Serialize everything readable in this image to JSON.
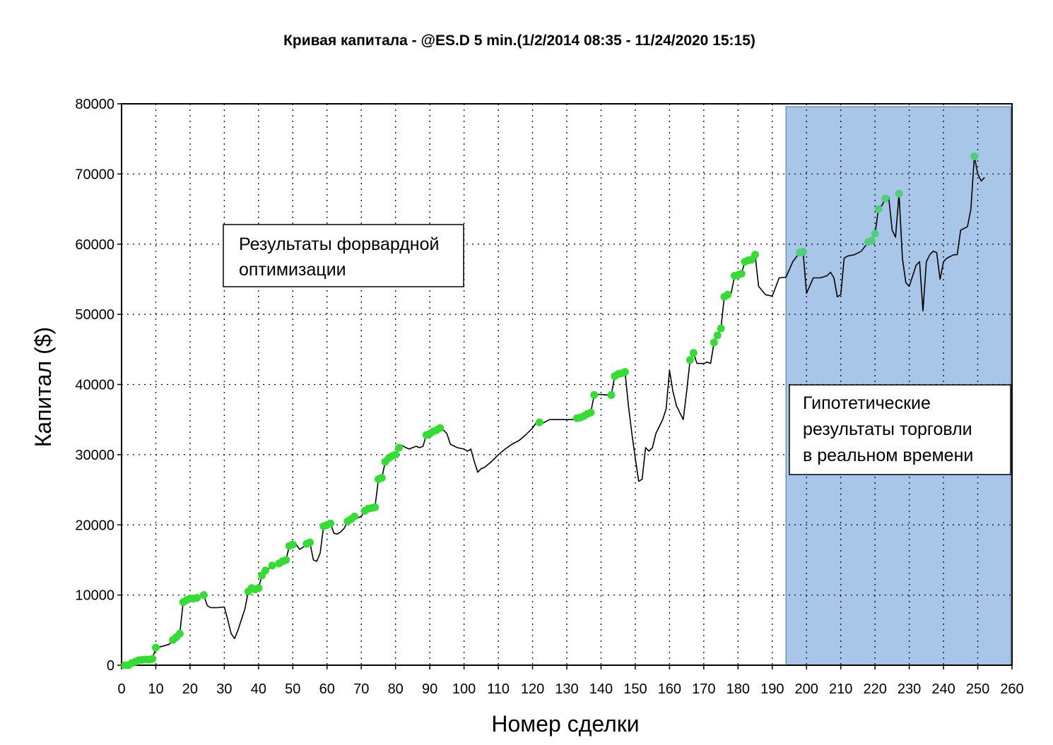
{
  "chart_data": {
    "type": "line",
    "title": "Кривая капитала - @ES.D 5 min.(1/2/2014 08:35 - 11/24/2020 15:15)",
    "xlabel": "Номер сделки",
    "ylabel": "Капитал ($)",
    "xlim": [
      0,
      260
    ],
    "ylim": [
      0,
      80000
    ],
    "x_ticks": [
      0,
      10,
      20,
      30,
      40,
      50,
      60,
      70,
      80,
      90,
      100,
      110,
      120,
      130,
      140,
      150,
      160,
      170,
      180,
      190,
      200,
      210,
      220,
      230,
      240,
      250,
      260
    ],
    "y_ticks": [
      0,
      10000,
      20000,
      30000,
      40000,
      50000,
      60000,
      70000,
      80000
    ],
    "grid": true,
    "series": [
      {
        "name": "",
        "color": "#000000",
        "points": [
          [
            0,
            0
          ],
          [
            2,
            0
          ],
          [
            3,
            300
          ],
          [
            4,
            500
          ],
          [
            5,
            700
          ],
          [
            6,
            750
          ],
          [
            7,
            800
          ],
          [
            8,
            800
          ],
          [
            9,
            900
          ],
          [
            10,
            2500
          ],
          [
            12,
            2700
          ],
          [
            14,
            3000
          ],
          [
            15,
            3600
          ],
          [
            16,
            4000
          ],
          [
            17,
            4500
          ],
          [
            18,
            9000
          ],
          [
            19,
            9300
          ],
          [
            20,
            9500
          ],
          [
            21,
            9500
          ],
          [
            22,
            9600
          ],
          [
            24,
            10000
          ],
          [
            25,
            8500
          ],
          [
            26,
            8200
          ],
          [
            28,
            8200
          ],
          [
            30,
            8300
          ],
          [
            31,
            6500
          ],
          [
            32,
            4500
          ],
          [
            33,
            3800
          ],
          [
            34,
            5000
          ],
          [
            35,
            6500
          ],
          [
            36,
            8000
          ],
          [
            37,
            10500
          ],
          [
            38,
            11000
          ],
          [
            39,
            10800
          ],
          [
            40,
            11000
          ],
          [
            41,
            12800
          ],
          [
            42,
            13500
          ],
          [
            43,
            13800
          ],
          [
            44,
            14200
          ],
          [
            45,
            14200
          ],
          [
            46,
            14500
          ],
          [
            47,
            14800
          ],
          [
            48,
            15000
          ],
          [
            49,
            17000
          ],
          [
            50,
            17200
          ],
          [
            51,
            17200
          ],
          [
            52,
            16500
          ],
          [
            53,
            16800
          ],
          [
            54,
            17300
          ],
          [
            55,
            17500
          ],
          [
            56,
            15000
          ],
          [
            57,
            14800
          ],
          [
            58,
            16000
          ],
          [
            59,
            19800
          ],
          [
            60,
            20000
          ],
          [
            61,
            20200
          ],
          [
            62,
            18800
          ],
          [
            63,
            18700
          ],
          [
            64,
            19000
          ],
          [
            65,
            19500
          ],
          [
            66,
            20500
          ],
          [
            67,
            20800
          ],
          [
            68,
            21200
          ],
          [
            69,
            21000
          ],
          [
            70,
            21200
          ],
          [
            71,
            22000
          ],
          [
            72,
            22300
          ],
          [
            73,
            22400
          ],
          [
            74,
            22500
          ],
          [
            75,
            26500
          ],
          [
            76,
            26700
          ],
          [
            77,
            29000
          ],
          [
            78,
            29500
          ],
          [
            79,
            29800
          ],
          [
            80,
            30000
          ],
          [
            81,
            31000
          ],
          [
            82,
            31300
          ],
          [
            83,
            31000
          ],
          [
            84,
            30800
          ],
          [
            85,
            31000
          ],
          [
            86,
            31200
          ],
          [
            87,
            31000
          ],
          [
            88,
            31200
          ],
          [
            89,
            32800
          ],
          [
            90,
            33000
          ],
          [
            91,
            33300
          ],
          [
            92,
            33500
          ],
          [
            93,
            33800
          ],
          [
            94,
            33500
          ],
          [
            95,
            33000
          ],
          [
            96,
            31500
          ],
          [
            98,
            31000
          ],
          [
            100,
            30800
          ],
          [
            101,
            30500
          ],
          [
            102,
            30800
          ],
          [
            103,
            29000
          ],
          [
            104,
            27500
          ],
          [
            105,
            28000
          ],
          [
            106,
            28200
          ],
          [
            108,
            29000
          ],
          [
            110,
            30000
          ],
          [
            112,
            30800
          ],
          [
            114,
            31500
          ],
          [
            116,
            32000
          ],
          [
            118,
            32800
          ],
          [
            120,
            33800
          ],
          [
            121,
            34500
          ],
          [
            122,
            34600
          ],
          [
            123,
            34500
          ],
          [
            125,
            35000
          ],
          [
            130,
            35000
          ],
          [
            132,
            35000
          ],
          [
            133,
            35200
          ],
          [
            134,
            35300
          ],
          [
            135,
            35500
          ],
          [
            136,
            35800
          ],
          [
            137,
            36000
          ],
          [
            138,
            38500
          ],
          [
            139,
            38600
          ],
          [
            142,
            38500
          ],
          [
            143,
            38500
          ],
          [
            144,
            41200
          ],
          [
            145,
            41500
          ],
          [
            146,
            41600
          ],
          [
            147,
            41800
          ],
          [
            148,
            37000
          ],
          [
            149,
            33000
          ],
          [
            150,
            29500
          ],
          [
            151,
            26200
          ],
          [
            152,
            26500
          ],
          [
            153,
            31000
          ],
          [
            154,
            30500
          ],
          [
            155,
            31000
          ],
          [
            156,
            33000
          ],
          [
            157,
            34000
          ],
          [
            158,
            35000
          ],
          [
            159,
            36500
          ],
          [
            160,
            42000
          ],
          [
            161,
            39000
          ],
          [
            162,
            37000
          ],
          [
            163,
            36000
          ],
          [
            164,
            35000
          ],
          [
            165,
            39000
          ],
          [
            166,
            43500
          ],
          [
            167,
            44500
          ],
          [
            168,
            43000
          ],
          [
            169,
            43000
          ],
          [
            170,
            43000
          ],
          [
            171,
            43200
          ],
          [
            172,
            43000
          ],
          [
            173,
            46000
          ],
          [
            174,
            47000
          ],
          [
            175,
            48000
          ],
          [
            176,
            52500
          ],
          [
            177,
            52800
          ],
          [
            178,
            53000
          ],
          [
            179,
            55500
          ],
          [
            180,
            55600
          ],
          [
            181,
            55800
          ],
          [
            182,
            57500
          ],
          [
            183,
            57700
          ],
          [
            184,
            57800
          ],
          [
            185,
            58500
          ],
          [
            186,
            54000
          ],
          [
            188,
            52800
          ],
          [
            190,
            52600
          ],
          [
            192,
            55200
          ],
          [
            194,
            55300
          ],
          [
            196,
            57500
          ],
          [
            198,
            58800
          ],
          [
            199,
            58900
          ],
          [
            200,
            53000
          ],
          [
            202,
            55200
          ],
          [
            204,
            55200
          ],
          [
            206,
            55500
          ],
          [
            207,
            56000
          ],
          [
            208,
            55200
          ],
          [
            209,
            52500
          ],
          [
            210,
            52800
          ],
          [
            211,
            58000
          ],
          [
            212,
            58300
          ],
          [
            214,
            58500
          ],
          [
            216,
            59000
          ],
          [
            218,
            60300
          ],
          [
            219,
            60500
          ],
          [
            220,
            61500
          ],
          [
            221,
            65000
          ],
          [
            222,
            65500
          ],
          [
            223,
            66500
          ],
          [
            224,
            66700
          ],
          [
            225,
            62000
          ],
          [
            226,
            61000
          ],
          [
            227,
            67200
          ],
          [
            228,
            58000
          ],
          [
            229,
            54500
          ],
          [
            230,
            54000
          ],
          [
            231,
            55500
          ],
          [
            232,
            57000
          ],
          [
            233,
            57500
          ],
          [
            234,
            50500
          ],
          [
            235,
            57500
          ],
          [
            236,
            58500
          ],
          [
            237,
            59000
          ],
          [
            238,
            58800
          ],
          [
            239,
            55000
          ],
          [
            240,
            57500
          ],
          [
            241,
            58000
          ],
          [
            243,
            58500
          ],
          [
            244,
            58500
          ],
          [
            245,
            62000
          ],
          [
            247,
            62500
          ],
          [
            248,
            65000
          ],
          [
            249,
            72500
          ],
          [
            250,
            70000
          ],
          [
            251,
            69000
          ],
          [
            252,
            69500
          ]
        ]
      }
    ],
    "markers": {
      "color_optimization": "#33dd33",
      "color_live": "#4fcf7a",
      "points": [
        [
          1,
          0
        ],
        [
          2,
          0
        ],
        [
          3,
          300
        ],
        [
          4,
          500
        ],
        [
          5,
          700
        ],
        [
          6,
          750
        ],
        [
          7,
          800
        ],
        [
          8,
          800
        ],
        [
          9,
          900
        ],
        [
          10,
          2500
        ],
        [
          15,
          3600
        ],
        [
          16,
          4000
        ],
        [
          17,
          4500
        ],
        [
          18,
          9000
        ],
        [
          19,
          9300
        ],
        [
          20,
          9500
        ],
        [
          21,
          9500
        ],
        [
          22,
          9600
        ],
        [
          24,
          10000
        ],
        [
          37,
          10500
        ],
        [
          38,
          11000
        ],
        [
          39,
          10800
        ],
        [
          40,
          11000
        ],
        [
          41,
          12800
        ],
        [
          42,
          13500
        ],
        [
          44,
          14200
        ],
        [
          46,
          14500
        ],
        [
          47,
          14800
        ],
        [
          48,
          15000
        ],
        [
          49,
          17000
        ],
        [
          50,
          17200
        ],
        [
          54,
          17300
        ],
        [
          55,
          17500
        ],
        [
          59,
          19800
        ],
        [
          60,
          20000
        ],
        [
          61,
          20200
        ],
        [
          66,
          20500
        ],
        [
          67,
          20800
        ],
        [
          68,
          21200
        ],
        [
          71,
          22000
        ],
        [
          72,
          22300
        ],
        [
          73,
          22400
        ],
        [
          74,
          22500
        ],
        [
          75,
          26500
        ],
        [
          76,
          26700
        ],
        [
          77,
          29000
        ],
        [
          78,
          29500
        ],
        [
          79,
          29800
        ],
        [
          80,
          30000
        ],
        [
          81,
          31000
        ],
        [
          89,
          32800
        ],
        [
          90,
          33000
        ],
        [
          91,
          33300
        ],
        [
          92,
          33500
        ],
        [
          93,
          33800
        ],
        [
          122,
          34600
        ],
        [
          133,
          35200
        ],
        [
          134,
          35300
        ],
        [
          135,
          35500
        ],
        [
          136,
          35800
        ],
        [
          137,
          36000
        ],
        [
          138,
          38500
        ],
        [
          143,
          38500
        ],
        [
          144,
          41200
        ],
        [
          145,
          41500
        ],
        [
          146,
          41600
        ],
        [
          147,
          41800
        ],
        [
          166,
          43500
        ],
        [
          167,
          44500
        ],
        [
          173,
          46000
        ],
        [
          174,
          47000
        ],
        [
          175,
          48000
        ],
        [
          176,
          52500
        ],
        [
          177,
          52800
        ],
        [
          179,
          55500
        ],
        [
          180,
          55600
        ],
        [
          181,
          55800
        ],
        [
          182,
          57500
        ],
        [
          183,
          57700
        ],
        [
          184,
          57800
        ],
        [
          185,
          58500
        ]
      ],
      "live_points": [
        [
          198,
          58800
        ],
        [
          199,
          58900
        ],
        [
          218,
          60300
        ],
        [
          219,
          60500
        ],
        [
          220,
          61500
        ],
        [
          221,
          65000
        ],
        [
          223,
          66500
        ],
        [
          227,
          67200
        ],
        [
          249,
          72500
        ]
      ]
    },
    "shaded_region": {
      "x_start": 194,
      "x_end": 260,
      "color": "#a7c6e8"
    },
    "annotations": [
      {
        "lines": [
          "Результаты форвардной",
          "оптимизации"
        ]
      },
      {
        "lines": [
          "Гипотетические",
          "результаты торговли",
          "в реальном времени"
        ]
      }
    ]
  }
}
